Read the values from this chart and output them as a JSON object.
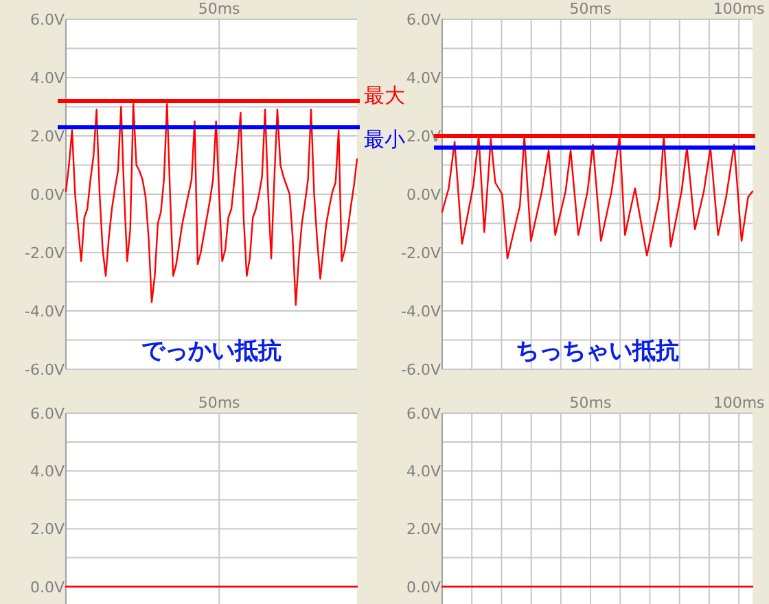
{
  "chart_data": [
    {
      "type": "line",
      "categories": [
        null,
        null,
        null,
        null,
        null,
        null,
        null,
        null,
        null,
        null,
        null,
        null,
        null,
        null,
        null,
        null,
        null,
        null,
        null,
        null,
        null,
        null,
        null,
        null,
        null,
        null,
        null,
        null,
        null,
        null,
        null,
        null,
        null,
        null,
        null,
        null,
        null,
        null,
        null,
        null,
        null,
        null,
        null,
        null,
        null,
        null,
        null,
        null,
        null,
        null,
        "50ms",
        null,
        null,
        null,
        null,
        null,
        null,
        null,
        null,
        null,
        null,
        null,
        null,
        null,
        null,
        null,
        null,
        null,
        null,
        null,
        null,
        null,
        null,
        null,
        null,
        null,
        null,
        null,
        null,
        null,
        null,
        null,
        null,
        null,
        null,
        null,
        null,
        null,
        null,
        null,
        null,
        null,
        null,
        null,
        null,
        null
      ],
      "ylim": [
        -6,
        6
      ],
      "yticks": [
        {
          "value": -6,
          "label": "-6.0V"
        },
        {
          "value": -5,
          "label": null
        },
        {
          "value": -4,
          "label": "-4.0V"
        },
        {
          "value": -3,
          "label": null
        },
        {
          "value": -2,
          "label": "-2.0V"
        },
        {
          "value": -1,
          "label": null
        },
        {
          "value": 0,
          "label": "0.0V"
        },
        {
          "value": 1,
          "label": null
        },
        {
          "value": 2,
          "label": "2.0V"
        },
        {
          "value": 3,
          "label": null
        },
        {
          "value": 4,
          "label": "4.0V"
        },
        {
          "value": 5,
          "label": null
        },
        {
          "value": 6,
          "label": "6.0V"
        }
      ],
      "grid": true,
      "series": [
        {
          "color": "#ff0000",
          "values": [
            0.1,
            1.0,
            2.2,
            0.0,
            -1.2,
            -2.3,
            -0.8,
            -0.5,
            0.5,
            1.3,
            2.9,
            0.0,
            -1.9,
            -2.8,
            -1.5,
            -0.5,
            0.2,
            0.8,
            3.0,
            0.0,
            -2.3,
            -1.2,
            3.1,
            1.0,
            0.8,
            0.5,
            -0.1,
            -1.5,
            -3.7,
            -2.8,
            -1.0,
            -0.6,
            0.5,
            3.1,
            0.0,
            -2.8,
            -2.4,
            -1.7,
            -1.0,
            -0.5,
            0.0,
            0.5,
            2.5,
            -2.4,
            -2.0,
            -1.4,
            -0.8,
            -0.2,
            0.5,
            2.5,
            0.0,
            -2.3,
            -1.9,
            -0.8,
            -0.5,
            0.5,
            1.5,
            2.8,
            -0.8,
            -2.8,
            -2.2,
            -0.8,
            -0.5,
            0.0,
            0.6,
            2.9,
            0.0,
            -2.2,
            0.5,
            2.9,
            1.0,
            0.6,
            0.3,
            0.0,
            -1.5,
            -3.8,
            -2.2,
            -1.0,
            -0.3,
            0.5,
            2.9,
            0.0,
            -1.6,
            -2.9,
            -1.9,
            -1.0,
            -0.4,
            0.1,
            0.4,
            2.2,
            -2.3,
            -1.9,
            -1.2,
            -0.4,
            0.3,
            1.2
          ]
        }
      ],
      "ref_lines": [
        {
          "axis": "y",
          "value": 3.2,
          "label": "最大",
          "color": "#ff0000"
        },
        {
          "axis": "y",
          "value": 2.3,
          "label": "最小",
          "color": "#0000ff"
        }
      ],
      "annotations": [
        "でっかい抵抗"
      ]
    },
    {
      "type": "line",
      "xlim": [
        0,
        104.6
      ],
      "xticks": [
        {
          "value": 10,
          "label": null
        },
        {
          "value": 20,
          "label": null
        },
        {
          "value": 30,
          "label": null
        },
        {
          "value": 40,
          "label": null
        },
        {
          "value": 50,
          "label": "50ms"
        },
        {
          "value": 60,
          "label": null
        },
        {
          "value": 70,
          "label": null
        },
        {
          "value": 80,
          "label": null
        },
        {
          "value": 90,
          "label": null
        },
        {
          "value": 100,
          "label": "100ms"
        }
      ],
      "ylim": [
        -6,
        6
      ],
      "yticks": [
        {
          "value": -6,
          "label": "-6.0V"
        },
        {
          "value": -5,
          "label": null
        },
        {
          "value": -4,
          "label": "-4.0V"
        },
        {
          "value": -3,
          "label": null
        },
        {
          "value": -2,
          "label": "-2.0V"
        },
        {
          "value": -1,
          "label": null
        },
        {
          "value": 0,
          "label": "0.0V"
        },
        {
          "value": 1,
          "label": null
        },
        {
          "value": 2,
          "label": "2.0V"
        },
        {
          "value": 3,
          "label": null
        },
        {
          "value": 4,
          "label": "4.0V"
        },
        {
          "value": 5,
          "label": null
        },
        {
          "value": 6,
          "label": "6.0V"
        }
      ],
      "grid": true,
      "series": [
        {
          "color": "#ff0000",
          "x": [
            0,
            2.2,
            4.2,
            6.7,
            10.5,
            12.3,
            14.2,
            16.4,
            17.9,
            20.2,
            22,
            26.2,
            27.7,
            29.9,
            33.6,
            35.9,
            38.1,
            41.6,
            43.3,
            45.9,
            49,
            50.8,
            53.5,
            57.1,
            59.8,
            61.6,
            65,
            69,
            73.2,
            74.7,
            77,
            80.7,
            82.5,
            85.2,
            88.2,
            90.4,
            93,
            95.7,
            98.4,
            100.9,
            103.1,
            104.6
          ],
          "values": [
            -0.6,
            0.2,
            1.8,
            -1.7,
            0.3,
            2.0,
            -1.3,
            1.9,
            0.4,
            0.0,
            -2.2,
            -0.4,
            2.0,
            -1.6,
            0.1,
            1.5,
            -1.4,
            0.1,
            1.5,
            -1.4,
            0.1,
            1.7,
            -1.6,
            0.1,
            2.0,
            -1.4,
            0.2,
            -2.1,
            -0.1,
            2.0,
            -1.8,
            0.1,
            1.6,
            -1.2,
            0.1,
            1.6,
            -1.4,
            -0.1,
            1.7,
            -1.6,
            -0.1,
            0.1
          ]
        }
      ],
      "ref_lines": [
        {
          "axis": "y",
          "value": 2.0,
          "color": "#ff0000"
        },
        {
          "axis": "y",
          "value": 1.6,
          "color": "#0000ff"
        }
      ],
      "annotations": [
        "ちっちゃい抵抗"
      ]
    },
    {
      "type": "line",
      "categories": [
        null,
        null,
        null,
        null,
        null,
        null,
        null,
        null,
        null,
        null,
        null,
        null,
        null,
        null,
        null,
        null,
        null,
        null,
        null,
        null,
        null,
        null,
        null,
        null,
        null,
        null,
        null,
        null,
        null,
        null,
        null,
        null,
        null,
        null,
        null,
        null,
        null,
        null,
        null,
        null,
        null,
        null,
        null,
        null,
        null,
        null,
        null,
        null,
        null,
        null,
        "50ms",
        null,
        null,
        null,
        null,
        null,
        null,
        null,
        null,
        null,
        null,
        null,
        null,
        null,
        null,
        null,
        null,
        null,
        null,
        null,
        null,
        null,
        null,
        null,
        null,
        null,
        null,
        null,
        null,
        null,
        null,
        null,
        null,
        null,
        null,
        null,
        null,
        null,
        null,
        null,
        null,
        null,
        null,
        null,
        null,
        null
      ],
      "ylim": [
        -0.6,
        6
      ],
      "yticks": [
        {
          "value": 0,
          "label": "0.0V"
        },
        {
          "value": 1,
          "label": null
        },
        {
          "value": 2,
          "label": "2.0V"
        },
        {
          "value": 3,
          "label": null
        },
        {
          "value": 4,
          "label": "4.0V"
        },
        {
          "value": 5,
          "label": null
        },
        {
          "value": 6,
          "label": "6.0V"
        }
      ],
      "grid": true,
      "series": [
        {
          "color": "#ff0000",
          "values": [
            0.0,
            0.0,
            0.0,
            0.0,
            0.0,
            0.0,
            0.0,
            0.0,
            0.0,
            0.0,
            0.0,
            0.0,
            0.0,
            0.0,
            0.0,
            0.0,
            0.0,
            0.0,
            0.0,
            0.0,
            0.0,
            0.0,
            0.0,
            0.0,
            0.0,
            0.0,
            0.0,
            0.0,
            0.0,
            0.0,
            0.0,
            0.0,
            0.0,
            0.0,
            0.0,
            0.0,
            0.0,
            0.0,
            0.0,
            0.0,
            0.0,
            0.0,
            0.0,
            0.0,
            0.0,
            0.0,
            0.0,
            0.0,
            0.0,
            0.0,
            0.0,
            0.0,
            0.0,
            0.0,
            0.0,
            0.0,
            0.0,
            0.0,
            0.0,
            0.0,
            0.0,
            0.0,
            0.0,
            0.0,
            0.0,
            0.0,
            0.0,
            0.0,
            0.0,
            0.0,
            0.0,
            0.0,
            0.0,
            0.0,
            0.0,
            0.0,
            0.0,
            0.0,
            0.0,
            0.0,
            0.0,
            0.0,
            0.0,
            0.0,
            0.0,
            0.0,
            0.0,
            0.0,
            0.0,
            0.0,
            0.0,
            0.0,
            0.0,
            0.0,
            0.0,
            0.0
          ]
        }
      ]
    },
    {
      "type": "line",
      "xlim": [
        0,
        104.6
      ],
      "xticks": [
        {
          "value": 10,
          "label": null
        },
        {
          "value": 20,
          "label": null
        },
        {
          "value": 30,
          "label": null
        },
        {
          "value": 40,
          "label": null
        },
        {
          "value": 50,
          "label": "50ms"
        },
        {
          "value": 60,
          "label": null
        },
        {
          "value": 70,
          "label": null
        },
        {
          "value": 80,
          "label": null
        },
        {
          "value": 90,
          "label": null
        },
        {
          "value": 100,
          "label": "100ms"
        }
      ],
      "ylim": [
        -0.6,
        6
      ],
      "yticks": [
        {
          "value": 0,
          "label": "0.0V"
        },
        {
          "value": 1,
          "label": null
        },
        {
          "value": 2,
          "label": "2.0V"
        },
        {
          "value": 3,
          "label": null
        },
        {
          "value": 4,
          "label": "4.0V"
        },
        {
          "value": 5,
          "label": null
        },
        {
          "value": 6,
          "label": "6.0V"
        }
      ],
      "grid": true,
      "series": [
        {
          "color": "#ff0000",
          "x": [
            0,
            104.6
          ],
          "values": [
            0.0,
            0.0
          ]
        }
      ]
    }
  ]
}
